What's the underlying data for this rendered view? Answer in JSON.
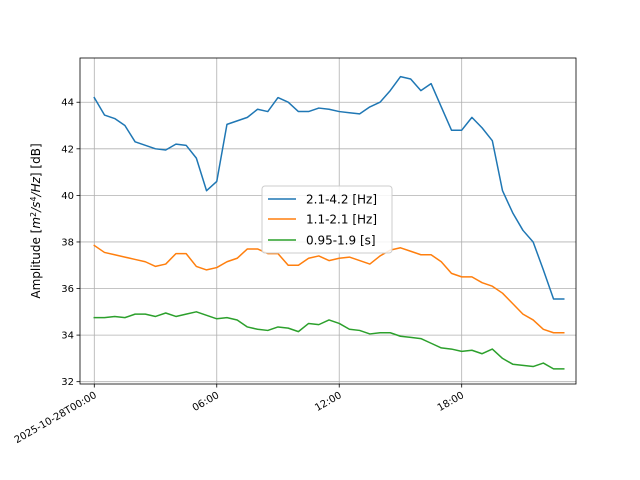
{
  "chart_data": {
    "type": "line",
    "title": "",
    "xlabel": "",
    "ylabel_parts": [
      "Amplitude [",
      "m",
      "2",
      "/",
      "s",
      "4",
      "/",
      "Hz",
      "] [dB]"
    ],
    "x_tick_labels": [
      "2025-10-28T00:00",
      "06:00",
      "12:00",
      "18:00"
    ],
    "x_tick_hours": [
      0,
      6,
      12,
      18
    ],
    "xlim_hours": [
      -0.7,
      23.6
    ],
    "ylim": [
      31.9,
      45.9
    ],
    "y_ticks": [
      32,
      34,
      36,
      38,
      40,
      42,
      44
    ],
    "grid": true,
    "legend_position": "center",
    "x_hours": [
      0,
      0.5,
      1,
      1.5,
      2,
      2.5,
      3,
      3.5,
      4,
      4.5,
      5,
      5.5,
      6,
      6.5,
      7,
      7.5,
      8,
      8.5,
      9,
      9.5,
      10,
      10.5,
      11,
      11.5,
      12,
      12.5,
      13,
      13.5,
      14,
      14.5,
      15,
      15.5,
      16,
      16.5,
      17,
      17.5,
      18,
      18.5,
      19,
      19.5,
      20,
      20.5,
      21,
      21.5,
      22,
      22.5,
      23
    ],
    "series": [
      {
        "name": "2.1-4.2 [Hz]",
        "color": "#1f77b4",
        "values": [
          44.2,
          43.45,
          43.3,
          43.0,
          42.3,
          42.15,
          42.0,
          41.95,
          42.2,
          42.15,
          41.6,
          40.2,
          40.6,
          43.05,
          43.2,
          43.35,
          43.7,
          43.6,
          44.2,
          44.0,
          43.6,
          43.6,
          43.75,
          43.7,
          43.6,
          43.55,
          43.5,
          43.8,
          44.0,
          44.5,
          45.1,
          45.0,
          44.5,
          44.8,
          43.8,
          42.8,
          42.8,
          43.35,
          42.9,
          42.35,
          40.2,
          39.25,
          38.5,
          38.0,
          36.8,
          35.55,
          35.55
        ]
      },
      {
        "name": "1.1-2.1 [Hz]",
        "color": "#ff7f0e",
        "values": [
          37.85,
          37.55,
          37.45,
          37.35,
          37.25,
          37.15,
          36.95,
          37.05,
          37.5,
          37.5,
          36.95,
          36.8,
          36.9,
          37.15,
          37.3,
          37.7,
          37.7,
          37.5,
          37.5,
          37.0,
          37.0,
          37.3,
          37.4,
          37.2,
          37.3,
          37.35,
          37.2,
          37.05,
          37.4,
          37.65,
          37.75,
          37.6,
          37.45,
          37.45,
          37.15,
          36.65,
          36.5,
          36.5,
          36.25,
          36.1,
          35.8,
          35.35,
          34.9,
          34.65,
          34.25,
          34.1,
          34.1
        ]
      },
      {
        "name": "0.95-1.9 [s]",
        "color": "#2ca02c",
        "values": [
          34.75,
          34.75,
          34.8,
          34.75,
          34.9,
          34.9,
          34.8,
          34.95,
          34.8,
          34.9,
          35.0,
          34.85,
          34.7,
          34.75,
          34.65,
          34.35,
          34.25,
          34.2,
          34.35,
          34.3,
          34.15,
          34.5,
          34.45,
          34.65,
          34.5,
          34.25,
          34.2,
          34.05,
          34.1,
          34.1,
          33.95,
          33.9,
          33.85,
          33.65,
          33.45,
          33.4,
          33.3,
          33.35,
          33.2,
          33.4,
          33.0,
          32.75,
          32.7,
          32.65,
          32.8,
          32.55,
          32.55
        ]
      }
    ]
  }
}
